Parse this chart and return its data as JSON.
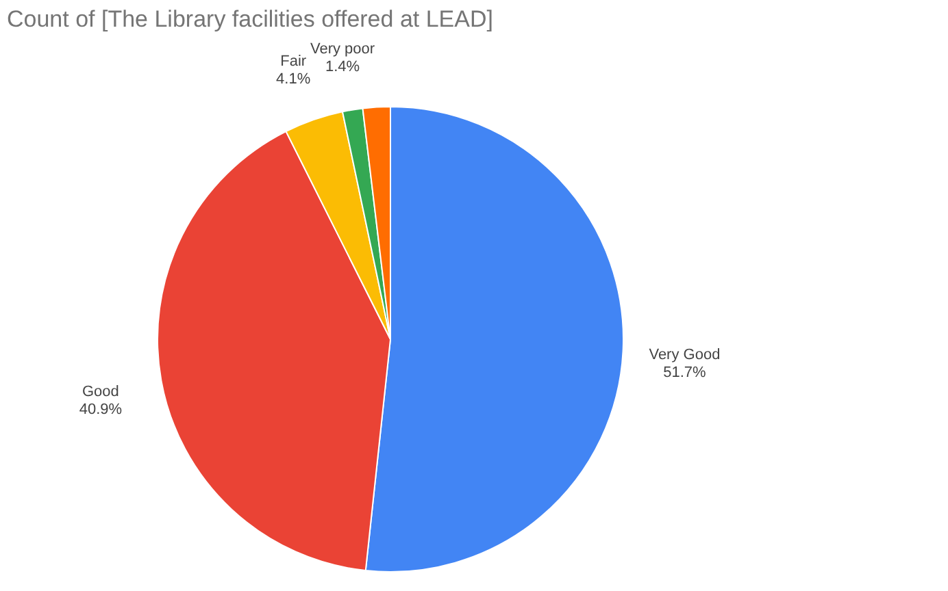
{
  "chart_data": {
    "type": "pie",
    "title": "Count of   [The Library facilities offered at LEAD]",
    "categories": [
      "Very Good",
      "Good",
      "Fair",
      "Very poor",
      null
    ],
    "values": [
      51.7,
      40.9,
      4.1,
      1.4,
      1.9
    ],
    "colors": [
      "#4285f4",
      "#ea4335",
      "#fbbc04",
      "#34a853",
      "#ff6d01"
    ],
    "value_labels": [
      "51.7%",
      "40.9%",
      "4.1%",
      "1.4%",
      null
    ],
    "legend": false
  }
}
